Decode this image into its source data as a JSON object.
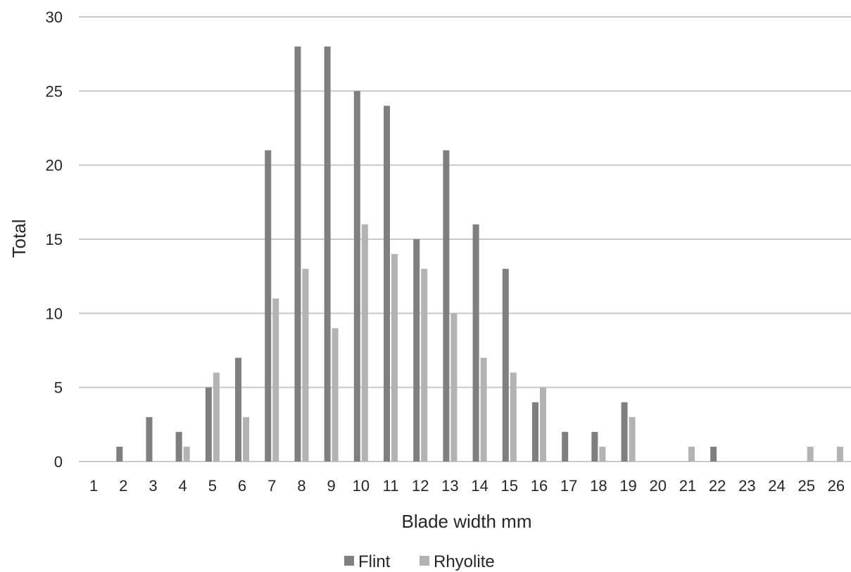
{
  "chart_data": {
    "type": "bar",
    "title": "",
    "xlabel": "Blade width mm",
    "ylabel": "Total",
    "ylim": [
      0,
      30
    ],
    "yticks": [
      0,
      5,
      10,
      15,
      20,
      25,
      30
    ],
    "grid": true,
    "legend_position": "bottom",
    "categories": [
      "1",
      "2",
      "3",
      "4",
      "5",
      "6",
      "7",
      "8",
      "9",
      "10",
      "11",
      "12",
      "13",
      "14",
      "15",
      "16",
      "17",
      "18",
      "19",
      "20",
      "21",
      "22",
      "23",
      "24",
      "25",
      "26"
    ],
    "series": [
      {
        "name": "Flint",
        "color": "#7f7f7f",
        "values": [
          0,
          1,
          3,
          2,
          5,
          7,
          21,
          28,
          28,
          25,
          24,
          15,
          21,
          16,
          13,
          4,
          2,
          2,
          4,
          0,
          0,
          1,
          0,
          0,
          0,
          0
        ]
      },
      {
        "name": "Rhyolite",
        "color": "#b3b3b3",
        "values": [
          0,
          0,
          0,
          1,
          6,
          3,
          11,
          13,
          9,
          16,
          14,
          13,
          10,
          7,
          6,
          5,
          0,
          1,
          3,
          0,
          1,
          0,
          0,
          0,
          1,
          1
        ]
      }
    ]
  }
}
